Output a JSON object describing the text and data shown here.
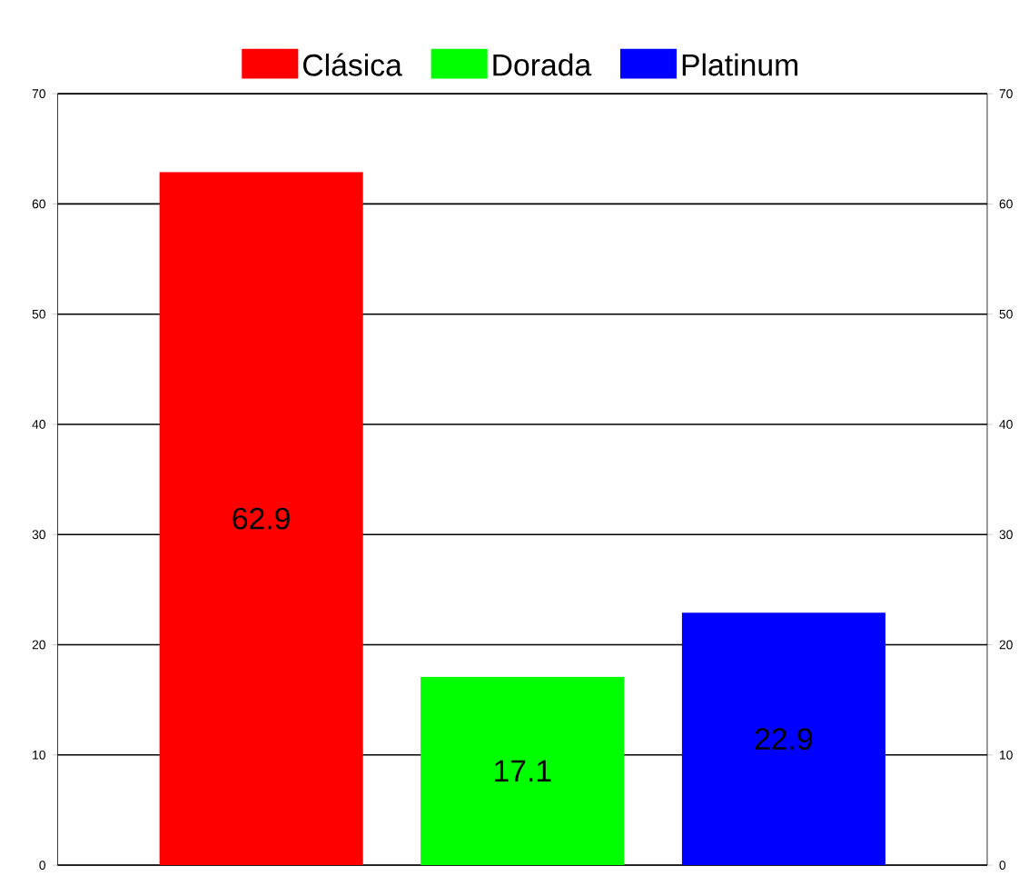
{
  "chart_data": {
    "type": "bar",
    "categories": [
      null
    ],
    "series": [
      {
        "name": "Clásica",
        "color": "#ff0000",
        "values": [
          62.9
        ]
      },
      {
        "name": "Dorada",
        "color": "#00ff00",
        "values": [
          17.1
        ]
      },
      {
        "name": "Platinum",
        "color": "#0000ff",
        "values": [
          22.9
        ]
      }
    ],
    "ylim": [
      0,
      70
    ],
    "yticks": [
      0,
      10,
      20,
      30,
      40,
      50,
      60,
      70
    ],
    "y2lim": [
      0,
      70
    ],
    "y2ticks": [
      0,
      10,
      20,
      30,
      40,
      50,
      60,
      70
    ],
    "grid": "y",
    "legend": "top",
    "data_labels": true
  }
}
